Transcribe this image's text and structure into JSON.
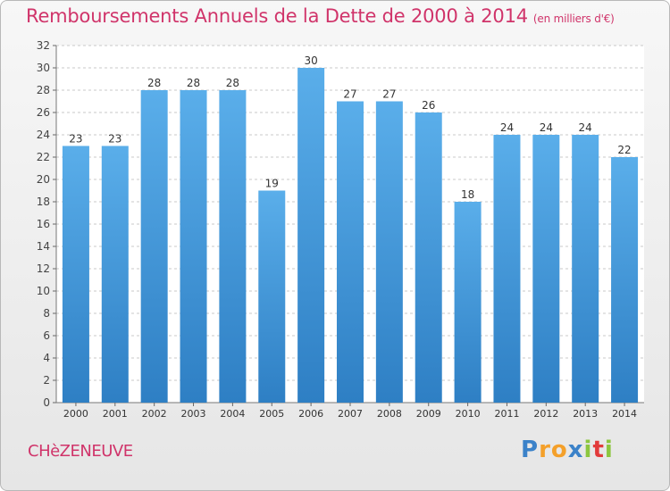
{
  "chart_data": {
    "type": "bar",
    "title": "Remboursements Annuels de la Dette de 2000 à 2014",
    "subtitle": "(en milliers d'€)",
    "categories": [
      "2000",
      "2001",
      "2002",
      "2003",
      "2004",
      "2005",
      "2006",
      "2007",
      "2008",
      "2009",
      "2010",
      "2011",
      "2012",
      "2013",
      "2014"
    ],
    "values": [
      23,
      23,
      28,
      28,
      28,
      19,
      30,
      27,
      27,
      26,
      18,
      24,
      24,
      24,
      22
    ],
    "ylim": [
      0,
      32
    ],
    "yticks": [
      "0",
      "2",
      "4",
      "6",
      "8",
      "10",
      "12",
      "14",
      "16",
      "18",
      "20",
      "22",
      "24",
      "26",
      "28",
      "30",
      "32"
    ],
    "grid": "horizontal dashed",
    "bar_color_top": "#5aaeea",
    "bar_color_bottom": "#2e7fc4"
  },
  "footer": {
    "commune": "CHèZENEUVE",
    "logo_letters": [
      "P",
      "r",
      "o",
      "x",
      "i",
      "t",
      "i"
    ],
    "logo_colors": [
      "#3b82c9",
      "#f4a02a",
      "#f4a02a",
      "#3b82c9",
      "#8cc63f",
      "#e23b3b",
      "#8cc63f"
    ]
  }
}
